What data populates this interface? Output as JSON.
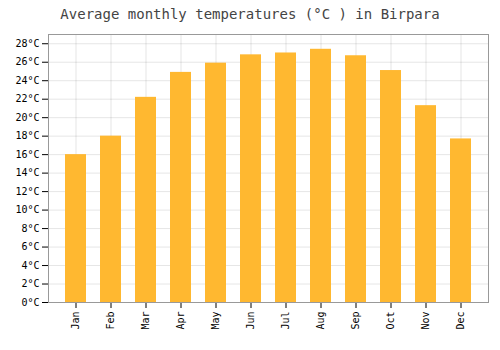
{
  "chart_data": {
    "type": "bar",
    "title": "Average monthly temperatures (°C ) in Birpara",
    "categories": [
      "Jan",
      "Feb",
      "Mar",
      "Apr",
      "May",
      "Jun",
      "Jul",
      "Aug",
      "Sep",
      "Oct",
      "Nov",
      "Dec"
    ],
    "values": [
      16.0,
      18.0,
      22.2,
      24.9,
      25.9,
      26.8,
      27.0,
      27.4,
      26.7,
      25.1,
      21.3,
      17.7
    ],
    "color": "#FFB830",
    "ylim": [
      0,
      29
    ],
    "yticks": [
      {
        "value": 0,
        "label": "0°C"
      },
      {
        "value": 2,
        "label": "2°C"
      },
      {
        "value": 4,
        "label": "4°C"
      },
      {
        "value": 6,
        "label": "6°C"
      },
      {
        "value": 8,
        "label": "8°C"
      },
      {
        "value": 10,
        "label": "10°C"
      },
      {
        "value": 12,
        "label": "12°C"
      },
      {
        "value": 14,
        "label": "14°C"
      },
      {
        "value": 16,
        "label": "16°C"
      },
      {
        "value": 18,
        "label": "18°C"
      },
      {
        "value": 20,
        "label": "20°C"
      },
      {
        "value": 22,
        "label": "22°C"
      },
      {
        "value": 24,
        "label": "24°C"
      },
      {
        "value": 26,
        "label": "26°C"
      },
      {
        "value": 28,
        "label": "28°C"
      }
    ],
    "grid": true
  }
}
